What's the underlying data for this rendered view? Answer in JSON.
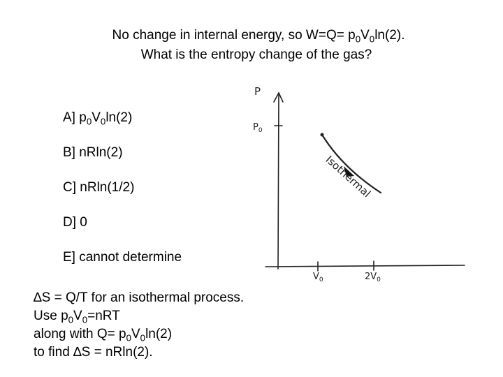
{
  "header": {
    "line1": [
      "No change in internal energy, so W=Q= p",
      "0",
      "V",
      "0",
      "ln(2)."
    ],
    "line2": "What is the entropy change of the gas?"
  },
  "options": [
    [
      "A] p",
      "0",
      "V",
      "0",
      "ln(2)"
    ],
    [
      "B] nRln(2)"
    ],
    [
      "C] nRln(1/2)"
    ],
    [
      "D] 0"
    ],
    [
      "E] cannot determine"
    ]
  ],
  "explanation": [
    [
      "∆S = Q/T for an isothermal process."
    ],
    [
      "Use p",
      "0",
      "V",
      "0",
      "=nRT"
    ],
    [
      "along with Q= p",
      "0",
      "V",
      "0",
      "ln(2)"
    ],
    [
      "to find ∆S = nRln(2)."
    ]
  ],
  "diagram": {
    "y_axis_label": "P",
    "y_tick_label": [
      "P",
      "0"
    ],
    "curve_label": "Isothermal",
    "x_tick_labels": [
      [
        "V",
        "0"
      ],
      [
        "2V",
        "0"
      ]
    ]
  }
}
